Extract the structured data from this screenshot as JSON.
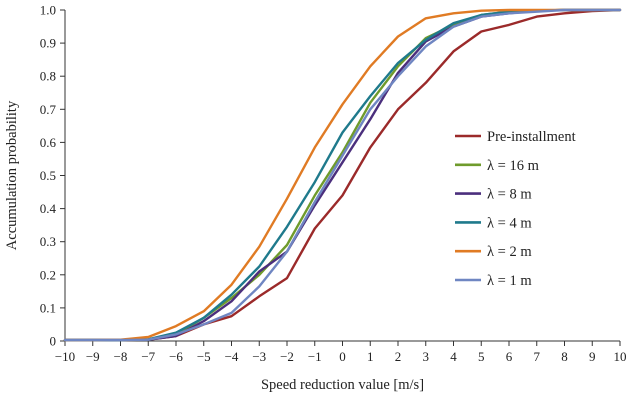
{
  "chart_data": {
    "type": "line",
    "xlabel": "Speed reduction value [m/s]",
    "ylabel": "Accumulation probability",
    "xlim": [
      -10,
      10
    ],
    "ylim": [
      0,
      1
    ],
    "x_ticks": [
      "−10",
      "−9",
      "−8",
      "−7",
      "−6",
      "−5",
      "−4",
      "−3",
      "−2",
      "−1",
      "0",
      "1",
      "2",
      "3",
      "4",
      "5",
      "6",
      "7",
      "8",
      "9",
      "10"
    ],
    "y_ticks": [
      "0",
      "0.1",
      "0.2",
      "0.3",
      "0.4",
      "0.5",
      "0.6",
      "0.7",
      "0.8",
      "0.9",
      "1.0"
    ],
    "x": [
      -10,
      -9,
      -8,
      -7,
      -6,
      -5,
      -4,
      -3,
      -2,
      -1,
      0,
      1,
      2,
      3,
      4,
      5,
      6,
      7,
      8,
      9,
      10
    ],
    "legend_position": "right",
    "grid": false,
    "series": [
      {
        "name": "Pre-installment",
        "color": "#9b2a2a",
        "values": [
          0.003,
          0.003,
          0.003,
          0.004,
          0.015,
          0.05,
          0.075,
          0.135,
          0.19,
          0.34,
          0.44,
          0.585,
          0.7,
          0.78,
          0.875,
          0.935,
          0.955,
          0.98,
          0.99,
          0.997,
          1.0
        ]
      },
      {
        "name": "λ = 16 m",
        "color": "#6f9b2c",
        "values": [
          0.003,
          0.003,
          0.003,
          0.004,
          0.02,
          0.07,
          0.13,
          0.2,
          0.29,
          0.44,
          0.57,
          0.72,
          0.83,
          0.915,
          0.955,
          0.985,
          0.995,
          0.998,
          1.0,
          1.0,
          1.0
        ]
      },
      {
        "name": "λ = 8 m",
        "color": "#4b2f7d",
        "values": [
          0.003,
          0.003,
          0.003,
          0.004,
          0.015,
          0.06,
          0.12,
          0.21,
          0.27,
          0.41,
          0.54,
          0.67,
          0.81,
          0.905,
          0.95,
          0.98,
          0.99,
          0.998,
          1.0,
          1.0,
          1.0
        ]
      },
      {
        "name": "λ = 4 m",
        "color": "#1f7a8c",
        "values": [
          0.003,
          0.003,
          0.003,
          0.005,
          0.025,
          0.07,
          0.14,
          0.225,
          0.345,
          0.48,
          0.63,
          0.74,
          0.84,
          0.91,
          0.96,
          0.985,
          0.995,
          0.998,
          1.0,
          1.0,
          1.0
        ]
      },
      {
        "name": "λ = 2 m",
        "color": "#e07b24",
        "values": [
          0.003,
          0.003,
          0.004,
          0.012,
          0.045,
          0.09,
          0.17,
          0.285,
          0.43,
          0.585,
          0.715,
          0.83,
          0.92,
          0.975,
          0.99,
          0.998,
          1.0,
          1.0,
          1.0,
          1.0,
          1.0
        ]
      },
      {
        "name": "λ = 1 m",
        "color": "#6f86c2",
        "values": [
          0.003,
          0.003,
          0.003,
          0.004,
          0.02,
          0.05,
          0.085,
          0.165,
          0.27,
          0.42,
          0.56,
          0.7,
          0.8,
          0.89,
          0.95,
          0.98,
          0.99,
          0.995,
          1.0,
          1.0,
          1.0
        ]
      }
    ]
  }
}
